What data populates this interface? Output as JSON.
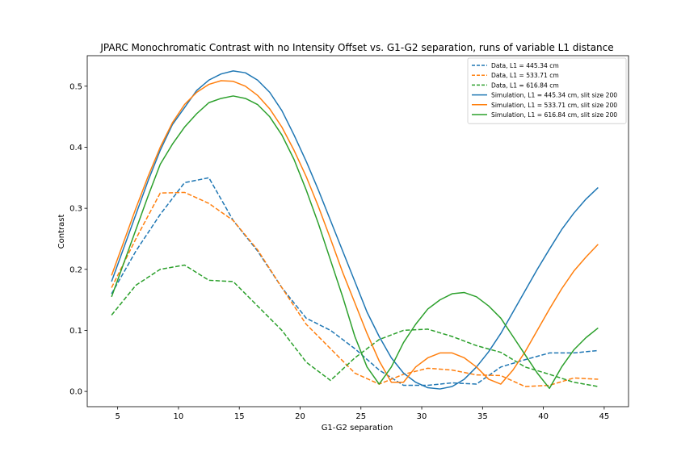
{
  "chart_data": {
    "type": "line",
    "title": "JPARC Monochromatic Contrast with no Intensity Offset vs. G1-G2 separation, runs of variable L1 distance",
    "xlabel": "G1-G2 separation",
    "ylabel": "Contrast",
    "xlim": [
      2.5,
      47.0
    ],
    "ylim": [
      -0.025,
      0.55
    ],
    "xticks": [
      5,
      10,
      15,
      20,
      25,
      30,
      35,
      40,
      45
    ],
    "yticks": [
      0.0,
      0.1,
      0.2,
      0.3,
      0.4,
      0.5
    ],
    "legend_position": "top-right",
    "series": [
      {
        "name": "Data, L1 = 445.34 cm",
        "color": "#1f77b4",
        "style": "dashed",
        "x": [
          4.5,
          6.5,
          8.5,
          10.5,
          12.5,
          14.5,
          16.5,
          18.5,
          20.5,
          22.5,
          24.5,
          26.5,
          28.5,
          30.5,
          32.5,
          34.5,
          36.5,
          38.5,
          40.5,
          42.5,
          44.5
        ],
        "y": [
          0.16,
          0.23,
          0.29,
          0.342,
          0.35,
          0.28,
          0.23,
          0.17,
          0.12,
          0.1,
          0.07,
          0.035,
          0.01,
          0.01,
          0.014,
          0.012,
          0.04,
          0.052,
          0.063,
          0.063,
          0.067
        ]
      },
      {
        "name": "Data, L1 = 533.71 cm",
        "color": "#ff7f0e",
        "style": "dashed",
        "x": [
          4.5,
          6.5,
          8.5,
          10.5,
          12.5,
          14.5,
          16.5,
          18.5,
          20.5,
          22.5,
          24.5,
          26.5,
          28.5,
          30.5,
          32.5,
          34.5,
          36.5,
          38.5,
          40.5,
          42.5,
          44.5
        ],
        "y": [
          0.17,
          0.25,
          0.325,
          0.326,
          0.308,
          0.28,
          0.232,
          0.17,
          0.11,
          0.07,
          0.03,
          0.012,
          0.028,
          0.038,
          0.035,
          0.027,
          0.026,
          0.008,
          0.01,
          0.022,
          0.02
        ]
      },
      {
        "name": "Data, L1 = 616.84 cm",
        "color": "#2ca02c",
        "style": "dashed",
        "x": [
          4.5,
          6.5,
          8.5,
          10.5,
          12.5,
          14.5,
          16.5,
          18.5,
          20.5,
          22.5,
          24.5,
          26.5,
          28.5,
          30.5,
          32.5,
          34.5,
          36.5,
          38.5,
          40.5,
          42.5,
          44.5
        ],
        "y": [
          0.125,
          0.174,
          0.2,
          0.207,
          0.182,
          0.18,
          0.14,
          0.1,
          0.048,
          0.018,
          0.055,
          0.085,
          0.1,
          0.102,
          0.09,
          0.075,
          0.064,
          0.04,
          0.028,
          0.015,
          0.008
        ]
      },
      {
        "name": "Simulation, L1 = 445.34 cm, slit size 200",
        "color": "#1f77b4",
        "style": "solid",
        "x": [
          4.5,
          5.5,
          6.5,
          7.5,
          8.5,
          9.5,
          10.5,
          11.5,
          12.5,
          13.5,
          14.5,
          15.5,
          16.5,
          17.5,
          18.5,
          19.5,
          20.5,
          21.5,
          22.5,
          23.5,
          24.5,
          25.5,
          26.5,
          27.5,
          28.5,
          29.5,
          30.5,
          31.5,
          32.5,
          33.5,
          34.5,
          35.5,
          36.5,
          37.5,
          38.5,
          39.5,
          40.5,
          41.5,
          42.5,
          43.5,
          44.5
        ],
        "y": [
          0.18,
          0.235,
          0.29,
          0.345,
          0.395,
          0.437,
          0.465,
          0.493,
          0.51,
          0.52,
          0.525,
          0.522,
          0.51,
          0.49,
          0.46,
          0.42,
          0.377,
          0.33,
          0.28,
          0.23,
          0.18,
          0.13,
          0.09,
          0.055,
          0.03,
          0.015,
          0.006,
          0.004,
          0.008,
          0.02,
          0.04,
          0.065,
          0.095,
          0.13,
          0.165,
          0.2,
          0.233,
          0.265,
          0.292,
          0.315,
          0.334
        ]
      },
      {
        "name": "Simulation, L1 = 533.71 cm, slit size 200",
        "color": "#ff7f0e",
        "style": "solid",
        "x": [
          4.5,
          5.5,
          6.5,
          7.5,
          8.5,
          9.5,
          10.5,
          11.5,
          12.5,
          13.5,
          14.5,
          15.5,
          16.5,
          17.5,
          18.5,
          19.5,
          20.5,
          21.5,
          22.5,
          23.5,
          24.5,
          25.5,
          26.5,
          27.5,
          28.5,
          29.5,
          30.5,
          31.5,
          32.5,
          33.5,
          34.5,
          35.5,
          36.5,
          37.5,
          38.5,
          39.5,
          40.5,
          41.5,
          42.5,
          43.5,
          44.5
        ],
        "y": [
          0.19,
          0.245,
          0.3,
          0.352,
          0.4,
          0.44,
          0.47,
          0.49,
          0.503,
          0.509,
          0.508,
          0.5,
          0.485,
          0.463,
          0.433,
          0.395,
          0.352,
          0.303,
          0.25,
          0.195,
          0.145,
          0.095,
          0.05,
          0.015,
          0.015,
          0.04,
          0.055,
          0.063,
          0.063,
          0.055,
          0.04,
          0.02,
          0.012,
          0.035,
          0.065,
          0.1,
          0.135,
          0.168,
          0.197,
          0.22,
          0.241
        ]
      },
      {
        "name": "Simulation, L1 = 616.84 cm, slit size 200",
        "color": "#2ca02c",
        "style": "solid",
        "x": [
          4.5,
          5.5,
          6.5,
          7.5,
          8.5,
          9.5,
          10.5,
          11.5,
          12.5,
          13.5,
          14.5,
          15.5,
          16.5,
          17.5,
          18.5,
          19.5,
          20.5,
          21.5,
          22.5,
          23.5,
          24.5,
          25.5,
          26.5,
          27.5,
          28.5,
          29.5,
          30.5,
          31.5,
          32.5,
          33.5,
          34.5,
          35.5,
          36.5,
          37.5,
          38.5,
          39.5,
          40.5,
          41.5,
          42.5,
          43.5,
          44.5
        ],
        "y": [
          0.155,
          0.21,
          0.265,
          0.32,
          0.372,
          0.405,
          0.433,
          0.455,
          0.473,
          0.48,
          0.484,
          0.48,
          0.47,
          0.45,
          0.42,
          0.38,
          0.33,
          0.275,
          0.215,
          0.155,
          0.09,
          0.04,
          0.012,
          0.04,
          0.08,
          0.11,
          0.135,
          0.15,
          0.16,
          0.162,
          0.155,
          0.14,
          0.12,
          0.09,
          0.06,
          0.03,
          0.005,
          0.04,
          0.068,
          0.088,
          0.104
        ]
      }
    ]
  }
}
